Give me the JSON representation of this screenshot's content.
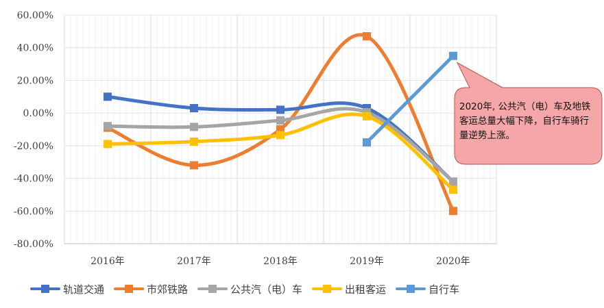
{
  "chart_data": {
    "type": "line",
    "categories": [
      "2016年",
      "2017年",
      "2018年",
      "2019年",
      "2020年"
    ],
    "ylim": [
      -0.8,
      0.6
    ],
    "yticks": [
      "60.00%",
      "40.00%",
      "20.00%",
      "0.00%",
      "-20.00%",
      "-40.00%",
      "-60.00%",
      "-80.00%"
    ],
    "ytick_values": [
      0.6,
      0.4,
      0.2,
      0.0,
      -0.2,
      -0.4,
      -0.6,
      -0.8
    ],
    "grid": true,
    "legend_position": "bottom",
    "series": [
      {
        "name": "轨道交通",
        "color": "#4472c4",
        "values": [
          0.1,
          0.03,
          0.02,
          0.03,
          -0.42
        ]
      },
      {
        "name": "市郊铁路",
        "color": "#ed7d31",
        "values": [
          -0.09,
          -0.32,
          -0.1,
          0.47,
          -0.6
        ]
      },
      {
        "name": "公共汽（电）车",
        "color": "#a5a5a5",
        "values": [
          -0.08,
          -0.085,
          -0.045,
          0.005,
          -0.42
        ]
      },
      {
        "name": "出租客运",
        "color": "#ffc000",
        "values": [
          -0.19,
          -0.175,
          -0.135,
          -0.02,
          -0.47
        ]
      },
      {
        "name": "自行车",
        "color": "#5b9bd5",
        "values": [
          null,
          null,
          null,
          -0.18,
          0.35
        ]
      }
    ],
    "annotation": {
      "text": "2020年, 公共汽（电）车及地铁客运总量大幅下降，自行车骑行量逆势上涨。",
      "fill": "#f4a6a8",
      "border": "#c0504d"
    }
  }
}
